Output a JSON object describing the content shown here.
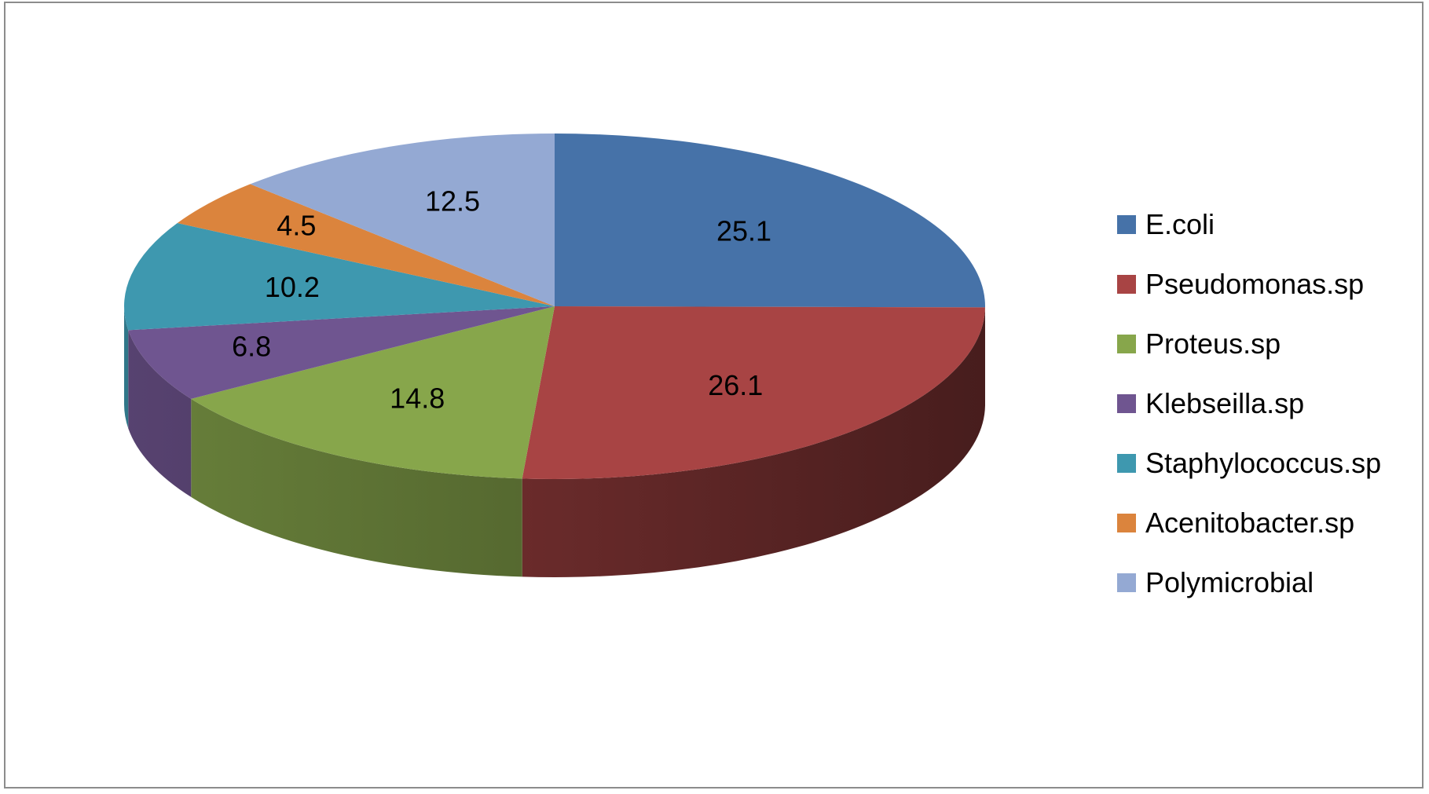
{
  "chart_data": {
    "type": "pie",
    "style": "3d",
    "legend_position": "right",
    "start_angle": "12 o'clock",
    "direction": "clockwise",
    "slices": [
      {
        "label": "E.coli",
        "value": 25.1,
        "value_label": "25.1",
        "color": "#4672A8"
      },
      {
        "label": "Pseudomonas.sp",
        "value": 26.1,
        "value_label": "26.1",
        "color": "#A84444"
      },
      {
        "label": "Proteus.sp",
        "value": 14.8,
        "value_label": "14.8",
        "color": "#87A64B"
      },
      {
        "label": "Klebseilla.sp",
        "value": 6.8,
        "value_label": "6.8",
        "color": "#6F5590"
      },
      {
        "label": "Staphylococcus.sp",
        "value": 10.2,
        "value_label": "10.2",
        "color": "#3E98AF"
      },
      {
        "label": "Acenitobacter.sp",
        "value": 4.5,
        "value_label": "4.5",
        "color": "#DB843D"
      },
      {
        "label": "Polymicrobial",
        "value": 12.5,
        "value_label": "12.5",
        "color": "#94A9D3"
      }
    ]
  }
}
